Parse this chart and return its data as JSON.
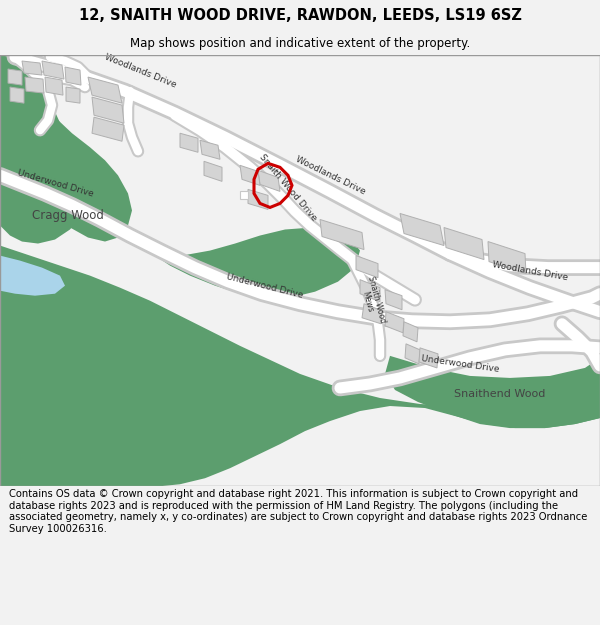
{
  "title": "12, SNAITH WOOD DRIVE, RAWDON, LEEDS, LS19 6SZ",
  "subtitle": "Map shows position and indicative extent of the property.",
  "footer": "Contains OS data © Crown copyright and database right 2021. This information is subject to Crown copyright and database rights 2023 and is reproduced with the permission of HM Land Registry. The polygons (including the associated geometry, namely x, y co-ordinates) are subject to Crown copyright and database rights 2023 Ordnance Survey 100026316.",
  "bg_color": "#f2f2f2",
  "map_bg": "#ffffff",
  "green_color": "#5c9e6e",
  "road_color": "#ffffff",
  "road_outline": "#c8c8c8",
  "building_color": "#d4d4d4",
  "building_outline": "#b0b0b0",
  "red_polygon_color": "#cc0000",
  "water_color": "#aad4ea",
  "title_fontsize": 10.5,
  "subtitle_fontsize": 8.5,
  "footer_fontsize": 7.2
}
